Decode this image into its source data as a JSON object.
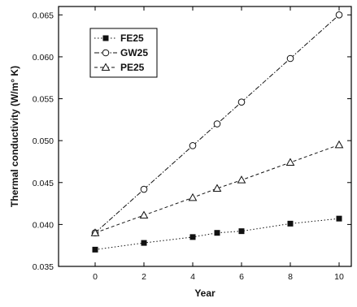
{
  "chart_data": {
    "type": "line",
    "title": "",
    "xlabel": "Year",
    "ylabel": "Thermal conductivity (W/m° K)",
    "xlim": [
      -1.5,
      10.5
    ],
    "ylim": [
      0.035,
      0.066
    ],
    "xticks": [
      0,
      2,
      4,
      6,
      8,
      10
    ],
    "xtick_labels": [
      "0",
      "2",
      "4",
      "6",
      "8",
      "10"
    ],
    "yticks": [
      0.035,
      0.04,
      0.045,
      0.05,
      0.055,
      0.06,
      0.065
    ],
    "ytick_labels": [
      "0.035",
      "0.040",
      "0.045",
      "0.050",
      "0.055",
      "0.060",
      "0.065"
    ],
    "grid": false,
    "legend_position": "top-left",
    "series": [
      {
        "name": "FE25",
        "marker": "filled-square",
        "line_style": "dotted",
        "color": "#111111",
        "x": [
          0,
          2,
          4,
          5,
          6,
          8,
          10
        ],
        "y": [
          0.037,
          0.0378,
          0.0385,
          0.039,
          0.0392,
          0.0401,
          0.0407
        ]
      },
      {
        "name": "GW25",
        "marker": "open-circle",
        "line_style": "dash-dot",
        "color": "#111111",
        "x": [
          0,
          2,
          4,
          5,
          6,
          8,
          10
        ],
        "y": [
          0.039,
          0.0442,
          0.0494,
          0.052,
          0.0546,
          0.0598,
          0.065
        ]
      },
      {
        "name": "PE25",
        "marker": "open-triangle",
        "line_style": "dashed",
        "color": "#111111",
        "x": [
          0,
          2,
          4,
          5,
          6,
          8,
          10
        ],
        "y": [
          0.039,
          0.0411,
          0.0432,
          0.0443,
          0.0453,
          0.0474,
          0.0495
        ]
      }
    ]
  }
}
